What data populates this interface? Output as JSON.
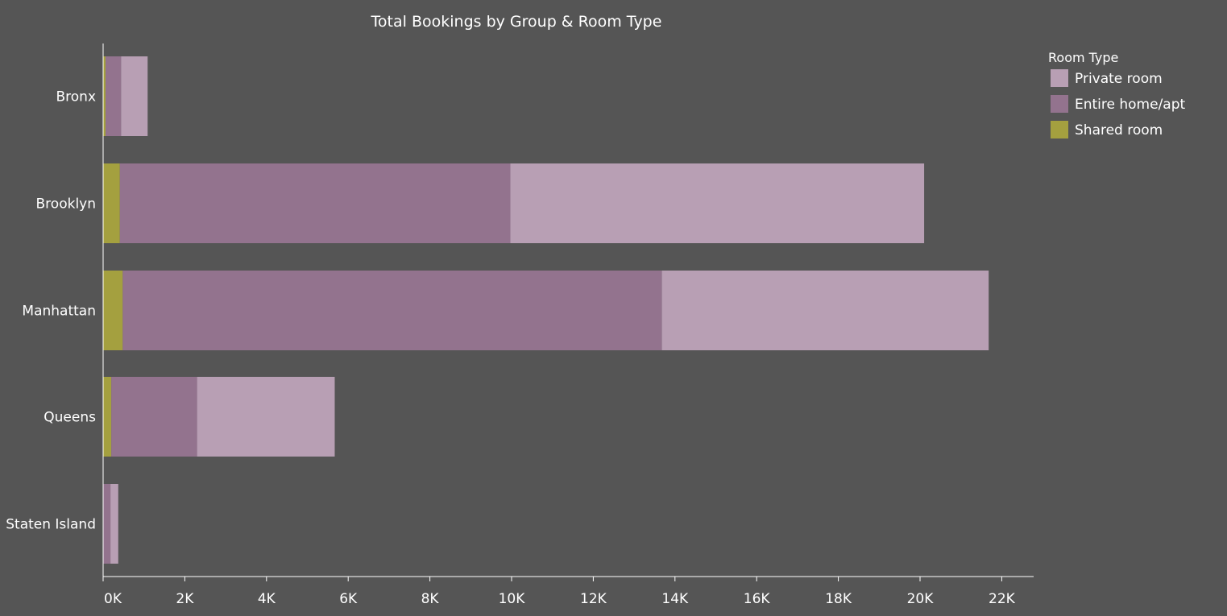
{
  "chart_data": {
    "type": "bar",
    "orientation": "horizontal",
    "stacked": true,
    "title": "Total Bookings by Group & Room Type",
    "xlabel": "",
    "ylabel": "",
    "categories": [
      "Bronx",
      "Brooklyn",
      "Manhattan",
      "Queens",
      "Staten Island"
    ],
    "series": [
      {
        "name": "Shared room",
        "color": "#a4a03f",
        "values": [
          60,
          410,
          480,
          200,
          10
        ]
      },
      {
        "name": "Entire home/apt",
        "color": "#93738e",
        "values": [
          380,
          9560,
          13200,
          2100,
          170
        ]
      },
      {
        "name": "Private room",
        "color": "#b89fb4",
        "values": [
          650,
          10130,
          8000,
          3370,
          190
        ]
      }
    ],
    "xlim": [
      0,
      22700
    ],
    "x_ticks": [
      0,
      2000,
      4000,
      6000,
      8000,
      10000,
      12000,
      14000,
      16000,
      18000,
      20000,
      22000
    ],
    "x_tick_labels": [
      "0K",
      "2K",
      "4K",
      "6K",
      "8K",
      "10K",
      "12K",
      "14K",
      "16K",
      "18K",
      "20K",
      "22K"
    ],
    "grid": false,
    "legend": {
      "title": "Room Type",
      "placement": "top-right",
      "entries": [
        {
          "name": "Private room",
          "color": "#b89fb4"
        },
        {
          "name": "Entire home/apt",
          "color": "#93738e"
        },
        {
          "name": "Shared room",
          "color": "#a4a03f"
        }
      ]
    }
  }
}
